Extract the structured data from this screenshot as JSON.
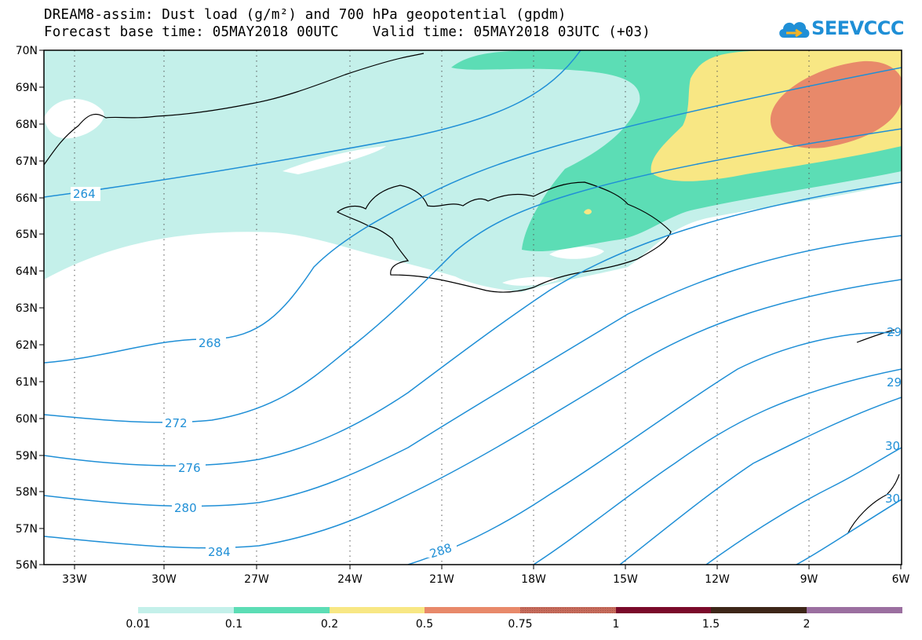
{
  "title": {
    "line1": "DREAM8-assim: Dust load (g/m²) and 700 hPa geopotential (gpdm)",
    "line2": "Forecast base time: 05MAY2018 00UTC    Valid time: 05MAY2018 03UTC (+03)"
  },
  "logo": {
    "text": "SEEVCCC",
    "icon": "cloud-icon",
    "color": "#1f8fd6"
  },
  "map": {
    "lat_labels": [
      "70N",
      "69N",
      "68N",
      "67N",
      "66N",
      "65N",
      "64N",
      "63N",
      "62N",
      "61N",
      "60N",
      "59N",
      "58N",
      "57N",
      "56N"
    ],
    "lon_labels": [
      "33W",
      "30W",
      "27W",
      "24W",
      "21W",
      "18W",
      "15W",
      "12W",
      "9W",
      "6W"
    ],
    "contour_color": "#1f8fd6",
    "contour_labels": [
      "264",
      "268",
      "272",
      "276",
      "280",
      "284",
      "288",
      "29",
      "29",
      "30",
      "30"
    ]
  },
  "colorbar": {
    "ticks": [
      "0.01",
      "0.1",
      "0.2",
      "0.5",
      "0.75",
      "1",
      "1.5",
      "2"
    ],
    "colors": [
      "#c4f0ea",
      "#5cddb5",
      "#f8e784",
      "#e8896a",
      "#c56a5a",
      "#7a0a2a",
      "#3d2618",
      "#9b6fa0"
    ]
  }
}
